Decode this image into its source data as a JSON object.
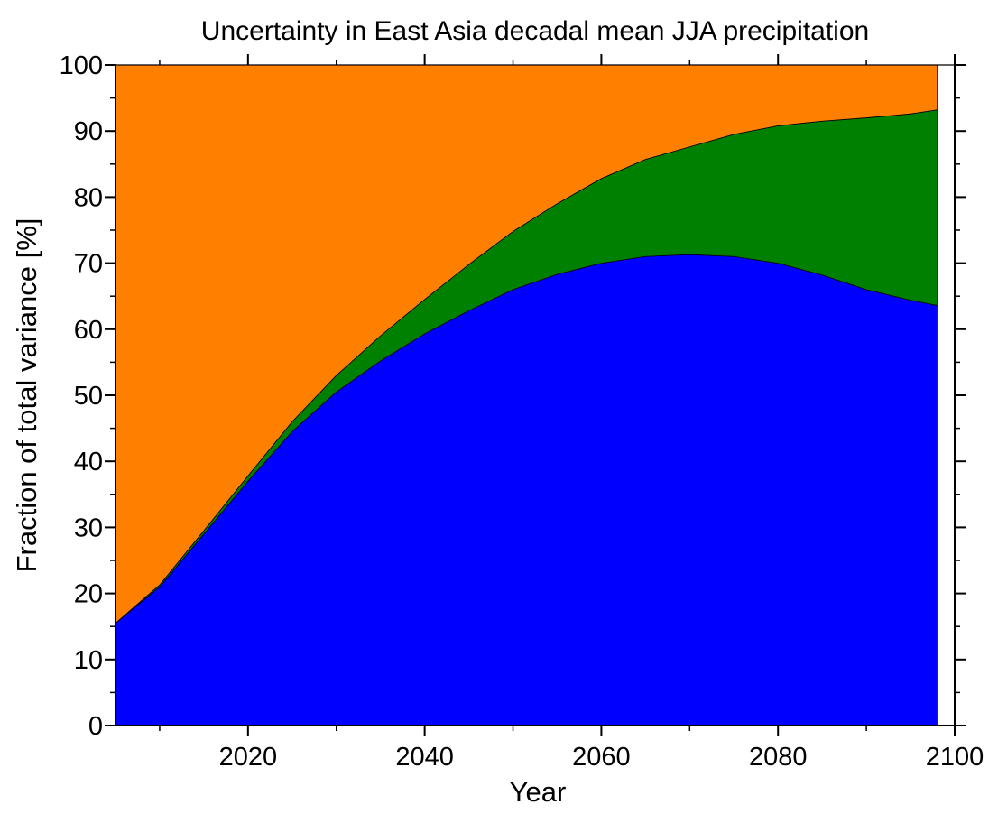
{
  "chart_data": {
    "type": "area",
    "stacked": true,
    "title": "Uncertainty in East Asia decadal mean JJA precipitation",
    "xlabel": "Year",
    "ylabel": "Fraction of total variance  [%]",
    "xlim": [
      2005,
      2100
    ],
    "ylim": [
      0,
      100
    ],
    "x_ticks": [
      2020,
      2040,
      2060,
      2080,
      2100
    ],
    "y_ticks": [
      0,
      10,
      20,
      30,
      40,
      50,
      60,
      70,
      80,
      90,
      100
    ],
    "grid": false,
    "legend": "none",
    "x": [
      2005,
      2010,
      2015,
      2020,
      2025,
      2030,
      2035,
      2040,
      2045,
      2050,
      2055,
      2060,
      2065,
      2070,
      2075,
      2080,
      2085,
      2090,
      2095,
      2098
    ],
    "series": [
      {
        "color": "#0000ff",
        "values": [
          15.5,
          21.0,
          29.0,
          37.0,
          44.5,
          50.5,
          55.2,
          59.3,
          62.8,
          66.0,
          68.3,
          70.0,
          71.0,
          71.3,
          71.0,
          70.0,
          68.2,
          66.0,
          64.4,
          63.6
        ]
      },
      {
        "color": "#008000",
        "values": [
          0.0,
          0.3,
          0.5,
          0.8,
          1.5,
          2.5,
          3.8,
          5.2,
          7.0,
          8.8,
          10.7,
          12.8,
          14.7,
          16.3,
          18.5,
          20.8,
          23.3,
          26.0,
          28.2,
          29.6
        ]
      },
      {
        "color": "#ff8000",
        "values": [
          84.5,
          78.7,
          70.5,
          62.2,
          54.0,
          47.0,
          41.0,
          35.5,
          30.2,
          25.2,
          21.0,
          17.2,
          14.3,
          12.4,
          10.5,
          9.2,
          8.5,
          8.0,
          7.4,
          6.8
        ]
      }
    ]
  }
}
